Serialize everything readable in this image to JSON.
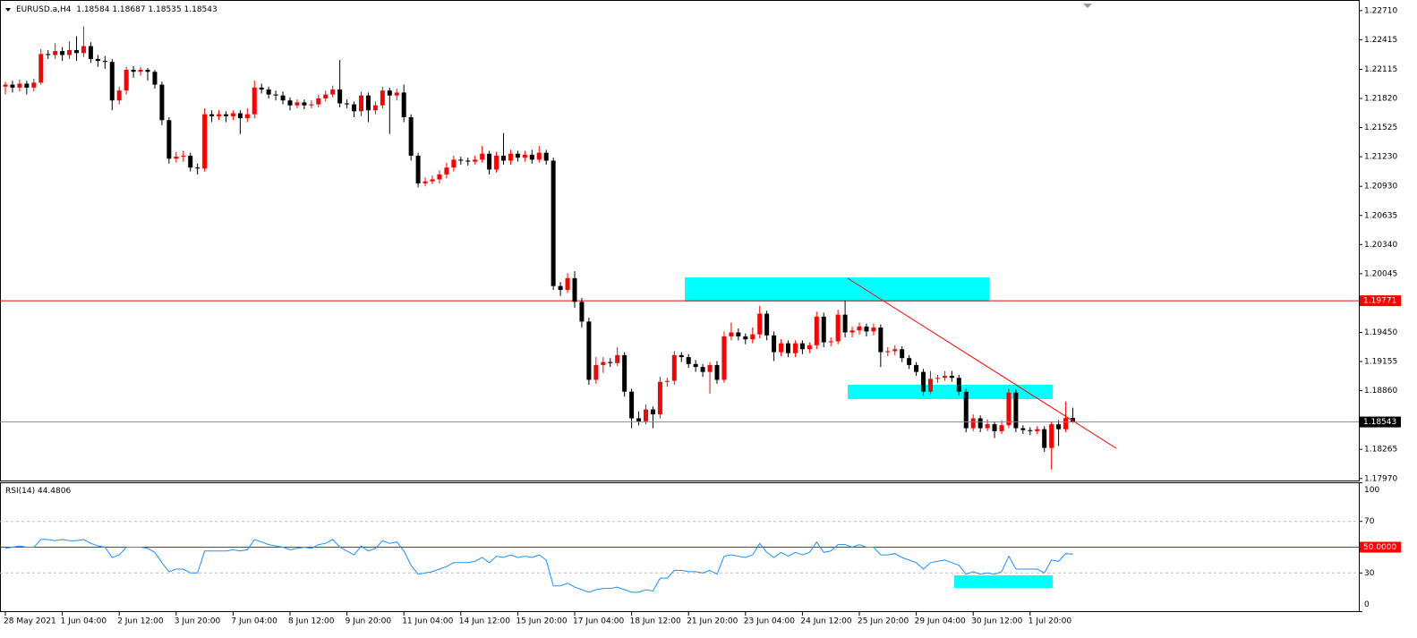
{
  "chart_data": {
    "type": "candlestick",
    "title": "EURUSD.a,H4",
    "bull_color": "#ff0000",
    "bear_color": "#000000",
    "categories": [
      "28 May 2021",
      null,
      null,
      null,
      null,
      null,
      null,
      null,
      "1 Jun 04:00",
      null,
      null,
      null,
      null,
      null,
      null,
      null,
      "2 Jun 12:00",
      null,
      null,
      null,
      null,
      null,
      null,
      null,
      "3 Jun 20:00",
      null,
      null,
      null,
      null,
      null,
      null,
      null,
      "7 Jun 04:00",
      null,
      null,
      null,
      null,
      null,
      null,
      null,
      "8 Jun 12:00",
      null,
      null,
      null,
      null,
      null,
      null,
      null,
      "9 Jun 20:00",
      null,
      null,
      null,
      null,
      null,
      null,
      null,
      "11 Jun 04:00",
      null,
      null,
      null,
      null,
      null,
      null,
      null,
      "14 Jun 12:00",
      null,
      null,
      null,
      null,
      null,
      null,
      null,
      "15 Jun 20:00",
      null,
      null,
      null,
      null,
      null,
      null,
      null,
      "17 Jun 04:00",
      null,
      null,
      null,
      null,
      null,
      null,
      null,
      "18 Jun 12:00",
      null,
      null,
      null,
      null,
      null,
      null,
      null,
      "21 Jun 20:00",
      null,
      null,
      null,
      null,
      null,
      null,
      null,
      "23 Jun 04:00",
      null,
      null,
      null,
      null,
      null,
      null,
      null,
      "24 Jun 12:00",
      null,
      null,
      null,
      null,
      null,
      null,
      null,
      "25 Jun 20:00",
      null,
      null,
      null,
      null,
      null,
      null,
      null,
      "29 Jun 04:00",
      null,
      null,
      null,
      null,
      null,
      null,
      null,
      "30 Jun 12:00",
      null,
      null,
      null,
      null,
      null,
      null,
      null,
      "1 Jul 20:00",
      null,
      null,
      null,
      null,
      null,
      null
    ],
    "candles": [
      [
        1.2194,
        1.2199,
        1.2186,
        1.2196
      ],
      [
        1.2196,
        1.22,
        1.2188,
        1.2193
      ],
      [
        1.2193,
        1.2201,
        1.2189,
        1.2197
      ],
      [
        1.2197,
        1.22,
        1.2186,
        1.2193
      ],
      [
        1.2193,
        1.2202,
        1.2189,
        1.2198
      ],
      [
        1.2198,
        1.2232,
        1.2196,
        1.2227
      ],
      [
        1.2227,
        1.2231,
        1.2222,
        1.2226
      ],
      [
        1.2226,
        1.2238,
        1.2222,
        1.223
      ],
      [
        1.223,
        1.2234,
        1.222,
        1.2226
      ],
      [
        1.2226,
        1.224,
        1.2222,
        1.2231
      ],
      [
        1.2231,
        1.2245,
        1.222,
        1.2228
      ],
      [
        1.2228,
        1.2255,
        1.2224,
        1.2235
      ],
      [
        1.2235,
        1.2239,
        1.2218,
        1.2222
      ],
      [
        1.2222,
        1.2226,
        1.2214,
        1.222
      ],
      [
        1.222,
        1.2225,
        1.2212,
        1.2219
      ],
      [
        1.2219,
        1.2222,
        1.217,
        1.218
      ],
      [
        1.218,
        1.2194,
        1.2176,
        1.219
      ],
      [
        1.219,
        1.2214,
        1.2186,
        1.2211
      ],
      [
        1.2211,
        1.2215,
        1.2203,
        1.2209
      ],
      [
        1.2209,
        1.2214,
        1.2205,
        1.2211
      ],
      [
        1.2211,
        1.2213,
        1.22,
        1.2209
      ],
      [
        1.2209,
        1.2211,
        1.2192,
        1.2196
      ],
      [
        1.2196,
        1.2199,
        1.2155,
        1.216
      ],
      [
        1.216,
        1.2163,
        1.2116,
        1.2121
      ],
      [
        1.2121,
        1.2128,
        1.2117,
        1.2123
      ],
      [
        1.2123,
        1.2129,
        1.2118,
        1.2124
      ],
      [
        1.2124,
        1.2127,
        1.2108,
        1.2112
      ],
      [
        1.2112,
        1.2116,
        1.2105,
        1.2111
      ],
      [
        1.2111,
        1.2172,
        1.2108,
        1.2166
      ],
      [
        1.2166,
        1.217,
        1.2158,
        1.2164
      ],
      [
        1.2164,
        1.217,
        1.216,
        1.2166
      ],
      [
        1.2166,
        1.2169,
        1.2158,
        1.2164
      ],
      [
        1.2164,
        1.217,
        1.216,
        1.2167
      ],
      [
        1.2167,
        1.217,
        1.2146,
        1.2162
      ],
      [
        1.2162,
        1.2172,
        1.2158,
        1.2166
      ],
      [
        1.2166,
        1.22,
        1.2162,
        1.2193
      ],
      [
        1.2193,
        1.2197,
        1.2187,
        1.2191
      ],
      [
        1.2191,
        1.2194,
        1.2182,
        1.2186
      ],
      [
        1.2186,
        1.219,
        1.218,
        1.2185
      ],
      [
        1.2185,
        1.2189,
        1.2176,
        1.218
      ],
      [
        1.218,
        1.2183,
        1.217,
        1.2175
      ],
      [
        1.2175,
        1.2181,
        1.2172,
        1.2178
      ],
      [
        1.2178,
        1.2181,
        1.2171,
        1.2175
      ],
      [
        1.2175,
        1.218,
        1.2172,
        1.2176
      ],
      [
        1.2176,
        1.2186,
        1.2173,
        1.2182
      ],
      [
        1.2182,
        1.219,
        1.2179,
        1.2186
      ],
      [
        1.2186,
        1.2195,
        1.2183,
        1.2191
      ],
      [
        1.2191,
        1.2221,
        1.2173,
        1.2177
      ],
      [
        1.2177,
        1.2181,
        1.2172,
        1.2176
      ],
      [
        1.2176,
        1.2179,
        1.2163,
        1.2169
      ],
      [
        1.2169,
        1.2189,
        1.2164,
        1.2185
      ],
      [
        1.2185,
        1.2188,
        1.2158,
        1.217
      ],
      [
        1.217,
        1.2179,
        1.2166,
        1.2175
      ],
      [
        1.2175,
        1.2194,
        1.2172,
        1.219
      ],
      [
        1.219,
        1.2193,
        1.2146,
        1.2185
      ],
      [
        1.2185,
        1.2192,
        1.218,
        1.2188
      ],
      [
        1.2188,
        1.2196,
        1.2158,
        1.2163
      ],
      [
        1.2163,
        1.2166,
        1.2119,
        1.2124
      ],
      [
        1.2124,
        1.2127,
        1.2092,
        1.2096
      ],
      [
        1.2096,
        1.2102,
        1.2093,
        1.2098
      ],
      [
        1.2098,
        1.2104,
        1.2095,
        1.21
      ],
      [
        1.21,
        1.2109,
        1.2096,
        1.2105
      ],
      [
        1.2105,
        1.2117,
        1.2101,
        1.2112
      ],
      [
        1.2112,
        1.2124,
        1.2108,
        1.212
      ],
      [
        1.212,
        1.2123,
        1.2115,
        1.2119
      ],
      [
        1.2119,
        1.2122,
        1.2114,
        1.2118
      ],
      [
        1.2118,
        1.2124,
        1.2115,
        1.212
      ],
      [
        1.212,
        1.2134,
        1.2117,
        1.2126
      ],
      [
        1.2126,
        1.2129,
        1.2105,
        1.211
      ],
      [
        1.211,
        1.2128,
        1.2107,
        1.2124
      ],
      [
        1.2124,
        1.2147,
        1.2115,
        1.2119
      ],
      [
        1.2119,
        1.213,
        1.2115,
        1.2126
      ],
      [
        1.2126,
        1.2129,
        1.2118,
        1.2122
      ],
      [
        1.2122,
        1.2129,
        1.2118,
        1.2125
      ],
      [
        1.2125,
        1.213,
        1.2116,
        1.212
      ],
      [
        1.212,
        1.2134,
        1.2117,
        1.2127
      ],
      [
        1.2127,
        1.213,
        1.2115,
        1.2119
      ],
      [
        1.2119,
        1.2122,
        1.1988,
        1.1992
      ],
      [
        1.1992,
        1.1996,
        1.1982,
        1.1988
      ],
      [
        1.1988,
        1.2005,
        1.1985,
        1.2
      ],
      [
        1.2,
        1.2007,
        1.197,
        1.1976
      ],
      [
        1.1976,
        1.198,
        1.195,
        1.1956
      ],
      [
        1.1956,
        1.196,
        1.1892,
        1.1897
      ],
      [
        1.1897,
        1.192,
        1.1893,
        1.1912
      ],
      [
        1.1912,
        1.192,
        1.1904,
        1.1915
      ],
      [
        1.1915,
        1.1919,
        1.191,
        1.1914
      ],
      [
        1.1914,
        1.193,
        1.1911,
        1.1922
      ],
      [
        1.1922,
        1.1925,
        1.188,
        1.1885
      ],
      [
        1.1885,
        1.1888,
        1.1848,
        1.1858
      ],
      [
        1.1858,
        1.1865,
        1.1851,
        1.1855
      ],
      [
        1.1855,
        1.1872,
        1.1852,
        1.1867
      ],
      [
        1.1867,
        1.187,
        1.1848,
        1.1862
      ],
      [
        1.1862,
        1.19,
        1.1858,
        1.1895
      ],
      [
        1.1895,
        1.1899,
        1.189,
        1.1896
      ],
      [
        1.1896,
        1.1926,
        1.1892,
        1.1922
      ],
      [
        1.1922,
        1.1925,
        1.1915,
        1.192
      ],
      [
        1.192,
        1.1923,
        1.1909,
        1.1913
      ],
      [
        1.1913,
        1.1917,
        1.1905,
        1.191
      ],
      [
        1.191,
        1.1913,
        1.19,
        1.1905
      ],
      [
        1.1905,
        1.1915,
        1.1883,
        1.1912
      ],
      [
        1.1912,
        1.1916,
        1.1893,
        1.1897
      ],
      [
        1.1897,
        1.1946,
        1.1894,
        1.1941
      ],
      [
        1.1941,
        1.1955,
        1.1937,
        1.1945
      ],
      [
        1.1945,
        1.1949,
        1.1937,
        1.1941
      ],
      [
        1.1941,
        1.1944,
        1.1933,
        1.1938
      ],
      [
        1.1938,
        1.195,
        1.1934,
        1.1943
      ],
      [
        1.1943,
        1.1972,
        1.1939,
        1.1964
      ],
      [
        1.1964,
        1.1967,
        1.1937,
        1.1942
      ],
      [
        1.1942,
        1.1946,
        1.1916,
        1.1925
      ],
      [
        1.1925,
        1.1938,
        1.1921,
        1.1934
      ],
      [
        1.1934,
        1.1937,
        1.192,
        1.1924
      ],
      [
        1.1924,
        1.1937,
        1.192,
        1.1934
      ],
      [
        1.1934,
        1.1937,
        1.1923,
        1.1928
      ],
      [
        1.1928,
        1.1935,
        1.1924,
        1.1932
      ],
      [
        1.1932,
        1.1966,
        1.1928,
        1.1961
      ],
      [
        1.1961,
        1.1965,
        1.193,
        1.1935
      ],
      [
        1.1935,
        1.194,
        1.1931,
        1.1936
      ],
      [
        1.1936,
        1.1968,
        1.1933,
        1.1963
      ],
      [
        1.1963,
        1.19771,
        1.194,
        1.1945
      ],
      [
        1.1945,
        1.1951,
        1.194,
        1.1947
      ],
      [
        1.1947,
        1.1955,
        1.1943,
        1.1951
      ],
      [
        1.1951,
        1.1954,
        1.1941,
        1.1946
      ],
      [
        1.1946,
        1.1954,
        1.1942,
        1.195
      ],
      [
        1.195,
        1.1953,
        1.191,
        1.1925
      ],
      [
        1.1925,
        1.193,
        1.1921,
        1.1926
      ],
      [
        1.1926,
        1.1932,
        1.1922,
        1.1928
      ],
      [
        1.1928,
        1.1931,
        1.1915,
        1.1919
      ],
      [
        1.1919,
        1.1922,
        1.1908,
        1.1912
      ],
      [
        1.1912,
        1.1915,
        1.1901,
        1.1905
      ],
      [
        1.1905,
        1.1908,
        1.1881,
        1.1885
      ],
      [
        1.1885,
        1.1906,
        1.1882,
        1.1898
      ],
      [
        1.1898,
        1.1902,
        1.1894,
        1.1899
      ],
      [
        1.1899,
        1.1906,
        1.1896,
        1.1901
      ],
      [
        1.1901,
        1.1906,
        1.1895,
        1.1899
      ],
      [
        1.1899,
        1.1902,
        1.1881,
        1.1885
      ],
      [
        1.1885,
        1.1888,
        1.1844,
        1.1848
      ],
      [
        1.1848,
        1.1862,
        1.1845,
        1.1858
      ],
      [
        1.1858,
        1.1861,
        1.1844,
        1.1848
      ],
      [
        1.1848,
        1.1857,
        1.1845,
        1.1852
      ],
      [
        1.1852,
        1.1855,
        1.1838,
        1.1845
      ],
      [
        1.1845,
        1.1856,
        1.1842,
        1.1851
      ],
      [
        1.1851,
        1.1888,
        1.1848,
        1.1884
      ],
      [
        1.1884,
        1.1887,
        1.1844,
        1.1848
      ],
      [
        1.1848,
        1.1851,
        1.1842,
        1.1846
      ],
      [
        1.1846,
        1.1849,
        1.1841,
        1.1845
      ],
      [
        1.1845,
        1.185,
        1.1842,
        1.1847
      ],
      [
        1.1847,
        1.185,
        1.1824,
        1.1828
      ],
      [
        1.1828,
        1.1855,
        1.1806,
        1.1852
      ],
      [
        1.1852,
        1.1856,
        1.183,
        1.1847
      ],
      [
        1.1847,
        1.1875,
        1.1844,
        1.18584
      ],
      [
        1.18584,
        1.18687,
        1.18535,
        1.18543
      ]
    ],
    "ylim": [
      1.1795,
      1.2279
    ],
    "yticks": [
      {
        "value": 1.2271,
        "label": "1.22710"
      },
      1.22415,
      1.22115,
      {
        "value": 1.2182,
        "label": "1.21820"
      },
      1.21525,
      {
        "value": 1.2123,
        "label": "1.21230"
      },
      {
        "value": 1.2093,
        "label": "1.20930"
      },
      1.20635,
      {
        "value": 1.2034,
        "label": "1.20340"
      },
      1.20045,
      {
        "value": 1.1945,
        "label": "1.19450"
      },
      1.19155,
      {
        "value": 1.1886,
        "label": "1.18860"
      },
      1.18265,
      {
        "value": 1.1797,
        "label": "1.17970"
      }
    ],
    "hlines": [
      {
        "value": 1.19771,
        "color": "#ff0000"
      }
    ],
    "price_line_color": "#778899",
    "rsi": {
      "label": "RSI(14)",
      "color": "#1e90ff",
      "ylim": [
        0,
        100
      ],
      "yticks": [
        100,
        70,
        30,
        0
      ],
      "levels": [
        70,
        30
      ],
      "midline": {
        "value": 50,
        "label": "50.0000",
        "color": "#ff0000"
      },
      "values": [
        49,
        50,
        51,
        50,
        50,
        56,
        56,
        55,
        56,
        55,
        55,
        56,
        53,
        51,
        50,
        42,
        44,
        50,
        50,
        50,
        49,
        46,
        38,
        31,
        33,
        33,
        30,
        30,
        47,
        47,
        47,
        47,
        48,
        47,
        48,
        56,
        54,
        52,
        51,
        50,
        48,
        49,
        50,
        49,
        52,
        53,
        56,
        50,
        47,
        44,
        51,
        47,
        49,
        55,
        53,
        54,
        47,
        36,
        29,
        30,
        31,
        33,
        35,
        38,
        38,
        38,
        39,
        42,
        38,
        43,
        42,
        44,
        42,
        43,
        42,
        44,
        40,
        20,
        20,
        22,
        19,
        17,
        15,
        17,
        18,
        18,
        19,
        17,
        15,
        15,
        17,
        16,
        26,
        26,
        32,
        32,
        31,
        31,
        30,
        32,
        29,
        43,
        44,
        43,
        42,
        44,
        53,
        46,
        42,
        46,
        43,
        46,
        44,
        46,
        54,
        46,
        47,
        52,
        52,
        50,
        52,
        50,
        50,
        44,
        44,
        45,
        42,
        40,
        38,
        33,
        38,
        39,
        40,
        38,
        36,
        29,
        31,
        29,
        30,
        29,
        31,
        43,
        33,
        33,
        33,
        33,
        30,
        40,
        39,
        45,
        44.4806
      ]
    }
  }
}
